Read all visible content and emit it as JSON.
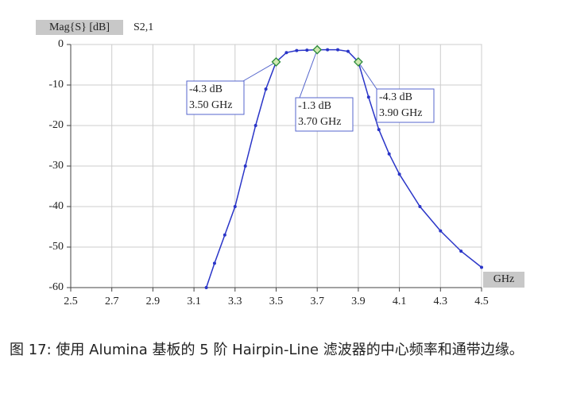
{
  "chart_data": {
    "type": "line",
    "y_label": "Mag{S} [dB]",
    "series_label": "S2,1",
    "x_label": "GHz",
    "xlim": [
      2.5,
      4.5
    ],
    "xticks": [
      2.5,
      2.7,
      2.9,
      3.1,
      3.3,
      3.5,
      3.7,
      3.9,
      4.1,
      4.3,
      4.5
    ],
    "ylim": [
      -60,
      0
    ],
    "yticks": [
      0,
      -10,
      -20,
      -30,
      -40,
      -50,
      -60
    ],
    "grid": true,
    "series": [
      {
        "name": "S2,1",
        "color": "#2a35c8",
        "x": [
          3.16,
          3.2,
          3.25,
          3.3,
          3.35,
          3.4,
          3.45,
          3.5,
          3.55,
          3.6,
          3.65,
          3.7,
          3.75,
          3.8,
          3.85,
          3.9,
          3.95,
          4.0,
          4.05,
          4.1,
          4.2,
          4.3,
          4.4,
          4.5
        ],
        "values": [
          -60,
          -54,
          -47,
          -40,
          -30,
          -20,
          -11,
          -4.3,
          -2,
          -1.5,
          -1.4,
          -1.3,
          -1.3,
          -1.3,
          -1.7,
          -4.3,
          -13,
          -21,
          -27,
          -32,
          -40,
          -46,
          -51,
          -55
        ]
      }
    ],
    "markers": [
      {
        "x": 3.5,
        "y": -4.3,
        "labels": [
          "-4.3 dB",
          "3.50 GHz"
        ]
      },
      {
        "x": 3.7,
        "y": -1.3,
        "labels": [
          "-1.3 dB",
          "3.70 GHz"
        ]
      },
      {
        "x": 3.9,
        "y": -4.3,
        "labels": [
          "-4.3 dB",
          "3.90 GHz"
        ]
      }
    ],
    "caption": "图 17: 使用 Alumina 基板的 5 阶 Hairpin-Line 滤波器的中心频率和通带边缘。"
  }
}
